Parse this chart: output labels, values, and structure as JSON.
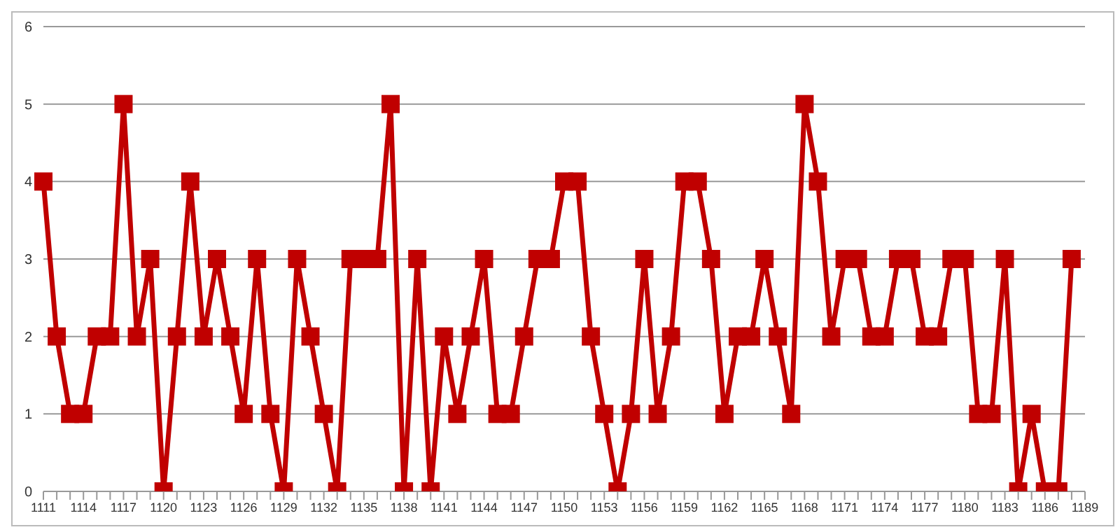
{
  "chart_data": {
    "type": "line",
    "categories": [
      "1111",
      null,
      null,
      "1114",
      null,
      null,
      "1117",
      null,
      null,
      "1120",
      null,
      null,
      "1123",
      null,
      null,
      "1126",
      null,
      null,
      "1129",
      null,
      null,
      "1132",
      null,
      null,
      "1135",
      null,
      null,
      "1138",
      null,
      null,
      "1141",
      null,
      null,
      "1144",
      null,
      null,
      "1147",
      null,
      null,
      "1150",
      null,
      null,
      "1153",
      null,
      null,
      "1156",
      null,
      null,
      "1159",
      null,
      null,
      "1162",
      null,
      null,
      "1165",
      null,
      null,
      "1168",
      null,
      null,
      "1171",
      null,
      null,
      "1174",
      null,
      null,
      "1177",
      null,
      null,
      "1180",
      null,
      null,
      "1183",
      null,
      null,
      "1186",
      null,
      null,
      "1189"
    ],
    "series": [
      {
        "color": "#c00000",
        "values": [
          4,
          2,
          1,
          1,
          2,
          2,
          5,
          2,
          3,
          0,
          2,
          4,
          2,
          3,
          2,
          1,
          3,
          1,
          0,
          3,
          2,
          1,
          0,
          3,
          3,
          3,
          5,
          0,
          3,
          0,
          2,
          1,
          2,
          3,
          1,
          1,
          2,
          3,
          3,
          4,
          4,
          2,
          1,
          0,
          1,
          3,
          1,
          2,
          4,
          4,
          3,
          1,
          2,
          2,
          3,
          2,
          1,
          5,
          4,
          2,
          3,
          3,
          2,
          2,
          3,
          3,
          2,
          2,
          3,
          3,
          1,
          1,
          3,
          0,
          1,
          0,
          0,
          3,
          null
        ]
      }
    ],
    "ylim": [
      0,
      6
    ],
    "yticks": [
      0,
      1,
      2,
      3,
      4,
      5,
      6
    ],
    "grid": "y",
    "legend": false,
    "marker": "square",
    "line_style": "solid"
  }
}
